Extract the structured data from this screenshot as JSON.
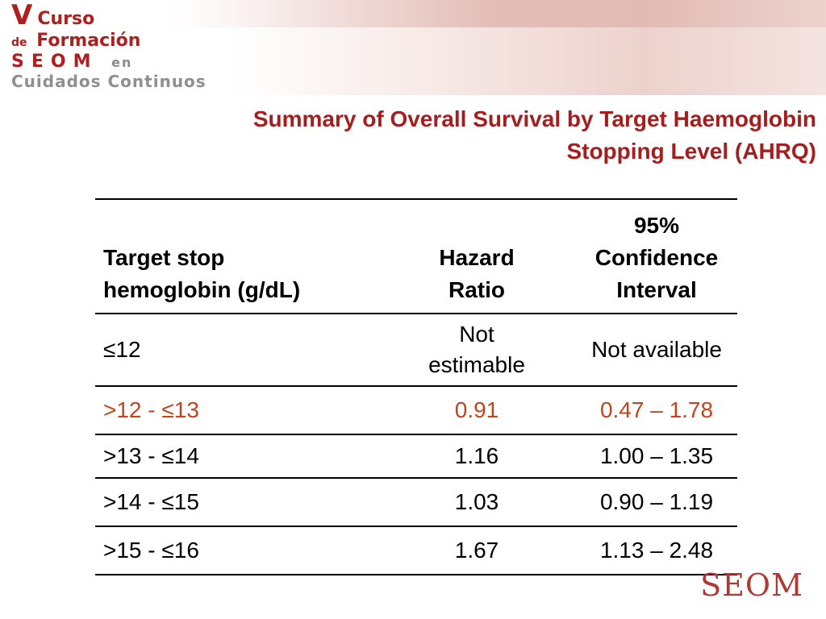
{
  "logo": {
    "numeral": "V",
    "word1": "Curso",
    "de": "de",
    "word2": "Formación",
    "org": "SEOM",
    "en": "en",
    "line4": "Cuidados Continuos"
  },
  "title": {
    "line1": "Summary of Overall Survival by Target Haemoglobin",
    "line2": "Stopping Level (AHRQ)"
  },
  "table": {
    "headers": {
      "col1_line1": "Target stop",
      "col1_line2": "hemoglobin (g/dL)",
      "col2_line1": "Hazard",
      "col2_line2": "Ratio",
      "col3_line1": "95%",
      "col3_line2": "Confidence",
      "col3_line3": "Interval"
    },
    "rows": [
      {
        "level": "≤12",
        "hr_line1": "Not",
        "hr_line2": "estimable",
        "ci": "Not available"
      },
      {
        "level": ">12 - ≤13",
        "hr": "0.91",
        "ci": "0.47 – 1.78"
      },
      {
        "level": ">13 - ≤14",
        "hr": "1.16",
        "ci": "1.00 – 1.35"
      },
      {
        "level": ">14 - ≤15",
        "hr": "1.03",
        "ci": "0.90 – 1.19"
      },
      {
        "level": ">15 - ≤16",
        "hr": "1.67",
        "ci": "1.13 – 2.48"
      }
    ]
  },
  "brand": "SEOM",
  "colors": {
    "title": "#a51d1d",
    "highlight_row": "#c0441e",
    "brand": "#b03a32"
  }
}
